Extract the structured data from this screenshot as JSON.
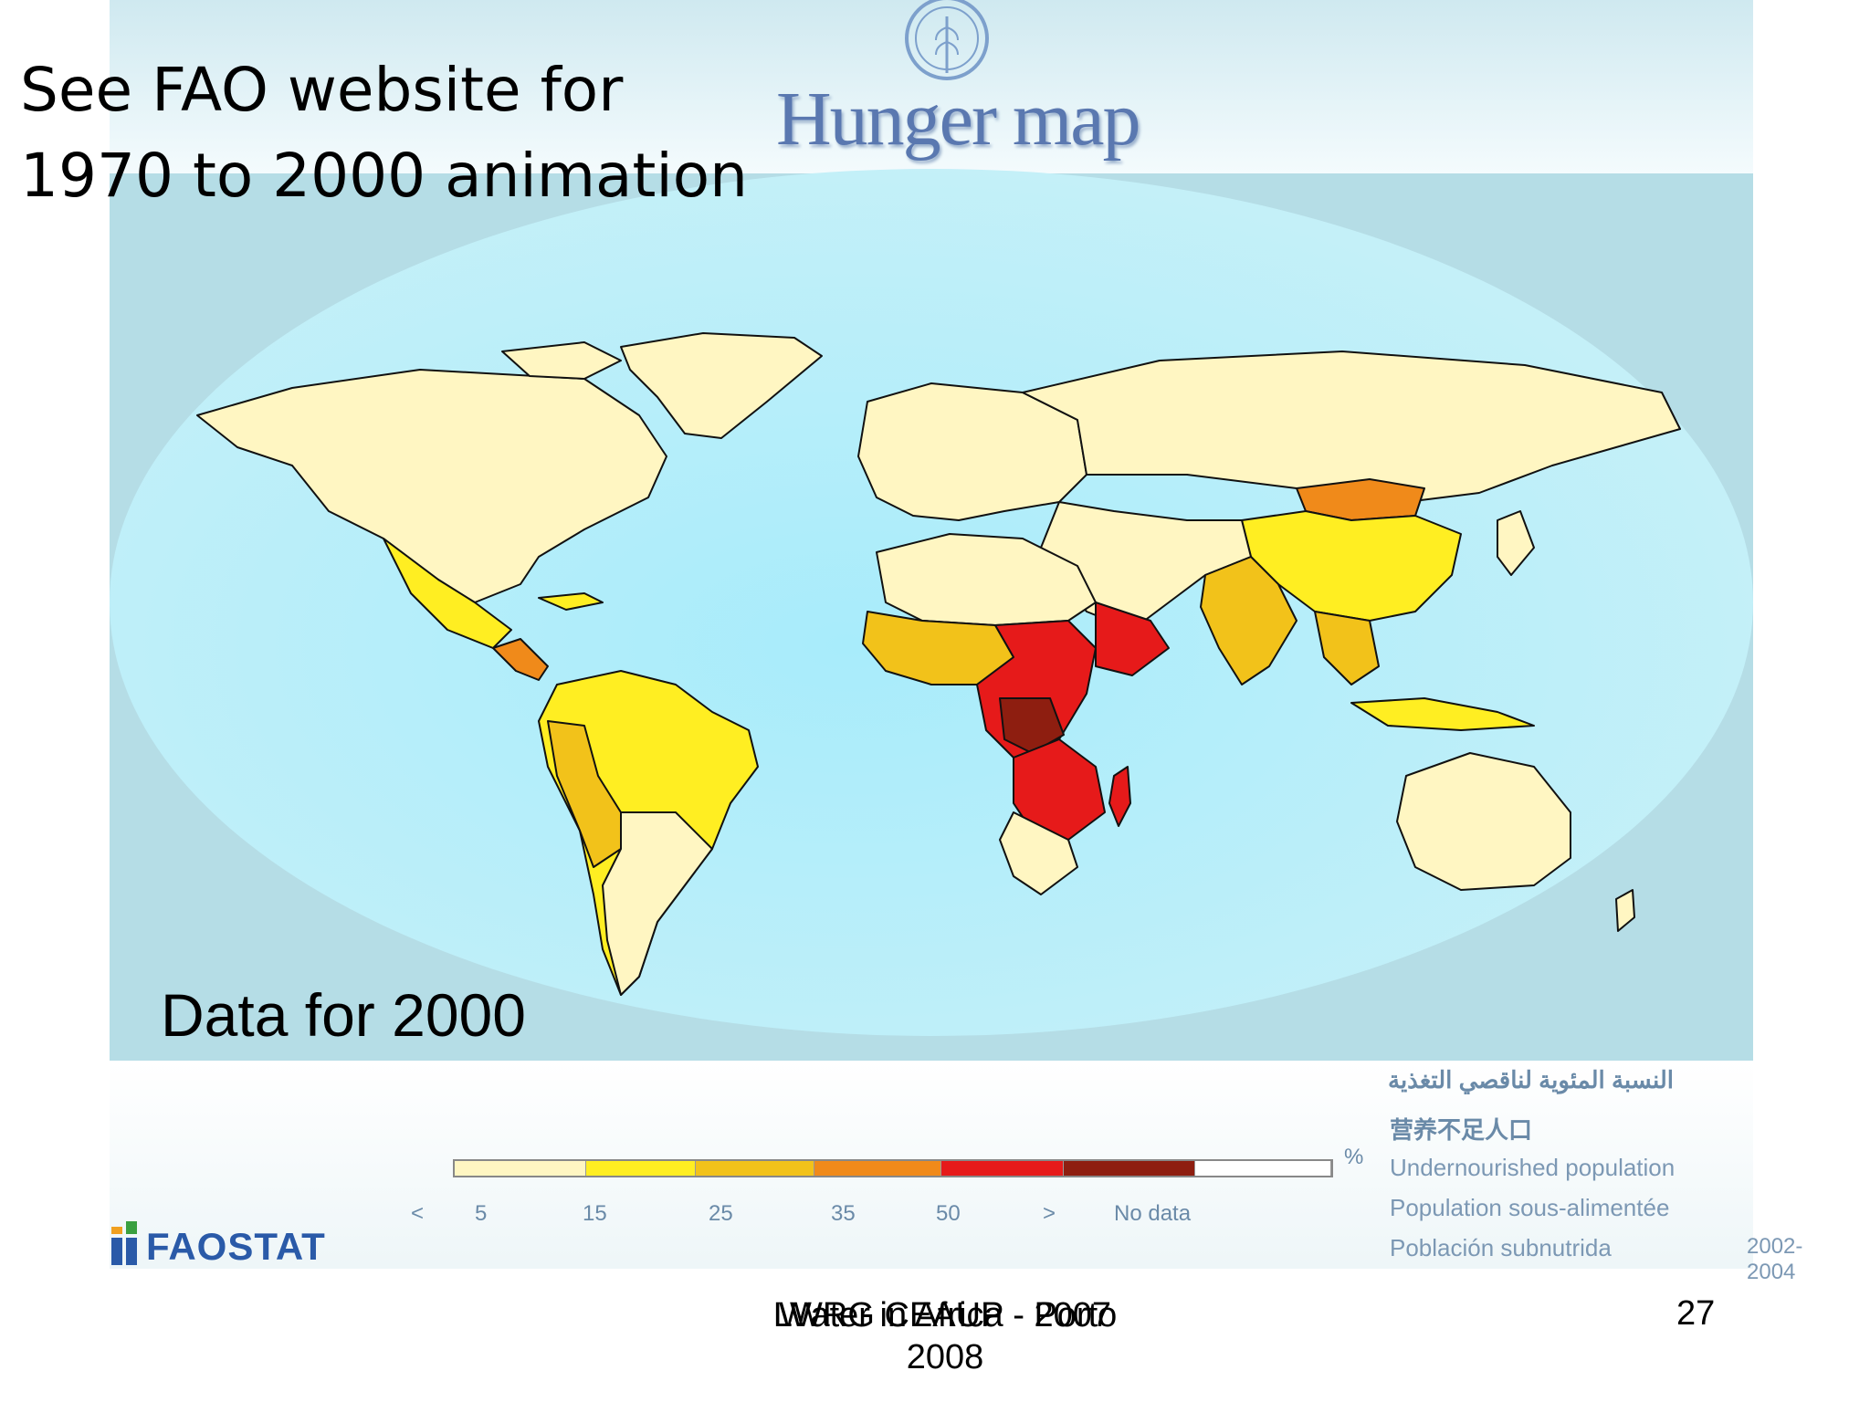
{
  "slide": {
    "note_line1": "See FAO website for",
    "note_line2": "1970 to 2000 animation",
    "data_year": "Data for 2000",
    "footer": "Water in Africa - 2007",
    "footer_overlap": "LWRG  CEAUP - Porto",
    "footer_year": "2008",
    "page_number": "27"
  },
  "map": {
    "title": "Hunger map",
    "legend_unit": "%",
    "legend_ticks": [
      "<",
      "5",
      "15",
      "25",
      "35",
      "50",
      ">",
      "No data"
    ],
    "legend_colors": [
      "#fff6c2",
      "#ffee22",
      "#f2c21a",
      "#f08a1a",
      "#e61a1a",
      "#8e1e10",
      "#ffffff"
    ],
    "legend_fractions": [
      0.15,
      0.125,
      0.135,
      0.145,
      0.14,
      0.15,
      0.155
    ],
    "label_arabic": "النسبة المئوية لناقصي التغذية",
    "label_chinese": "营养不足人口",
    "label_en": "Undernourished population",
    "label_fr": "Population sous-alimentée",
    "label_es": "Población subnutrida",
    "data_period": "2002-2004",
    "colors": {
      "ocean": "#b5dde6",
      "globe_center": "#a8ecfb",
      "low": "#fff6c2",
      "c5": "#ffee22",
      "c15": "#f2c21a",
      "c25": "#f08a1a",
      "c35": "#e61a1a",
      "c50": "#8e1e10"
    }
  },
  "faostat_logo": "FAOSTAT"
}
